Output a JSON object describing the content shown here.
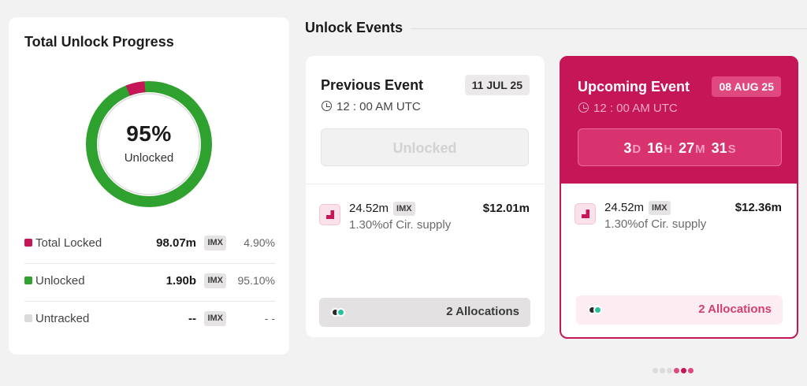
{
  "progress": {
    "title": "Total Unlock Progress",
    "percent_label": "95%",
    "percent_caption": "Unlocked",
    "unlocked_fraction": 0.951,
    "colors": {
      "unlocked": "#2ea12f",
      "locked": "#c51657",
      "untracked": "#d6d4d5"
    },
    "legend": [
      {
        "name": "Total Locked",
        "amount": "98.07m",
        "token": "IMX",
        "percent": "4.90%",
        "color": "#c51657"
      },
      {
        "name": "Unlocked",
        "amount": "1.90b",
        "token": "IMX",
        "percent": "95.10%",
        "color": "#2ea12f"
      },
      {
        "name": "Untracked",
        "amount": "--",
        "token": "IMX",
        "percent": "- -",
        "color": "#dcdada"
      }
    ]
  },
  "events": {
    "section_title": "Unlock Events",
    "previous": {
      "title": "Previous Event",
      "date": "11 JUL 25",
      "time": "12 : 00 AM UTC",
      "status": "Unlocked",
      "amount": "24.52m",
      "token": "IMX",
      "supply": "1.30%of Cir. supply",
      "usd": "$12.01m",
      "allocations": "2 Allocations"
    },
    "upcoming": {
      "title": "Upcoming Event",
      "date": "08 AUG 25",
      "time": "12 : 00 AM UTC",
      "countdown": {
        "days": "3",
        "d": "D",
        "hours": "16",
        "h": "H",
        "minutes": "27",
        "m": "M",
        "seconds": "31",
        "s": "S"
      },
      "amount": "24.52m",
      "token": "IMX",
      "supply": "1.30%of Cir. supply",
      "usd": "$12.36m",
      "allocations": "2 Allocations"
    }
  },
  "pagination": {
    "dots": [
      {
        "color": "#dcdada"
      },
      {
        "color": "#dcdada"
      },
      {
        "color": "#dcdada"
      },
      {
        "color": "#e0497f"
      },
      {
        "color": "#c51657"
      },
      {
        "color": "#e0497f"
      }
    ]
  }
}
